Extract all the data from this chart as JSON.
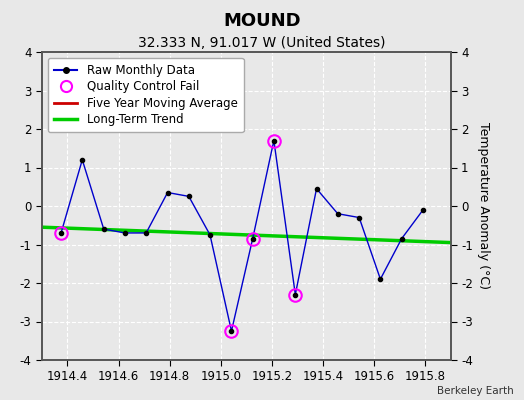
{
  "title": "MOUND",
  "subtitle": "32.333 N, 91.017 W (United States)",
  "credit": "Berkeley Earth",
  "ylabel": "Temperature Anomaly (°C)",
  "xlim": [
    1914.3,
    1915.9
  ],
  "ylim": [
    -4,
    4
  ],
  "xticks": [
    1914.4,
    1914.6,
    1914.8,
    1915.0,
    1915.2,
    1915.4,
    1915.6,
    1915.8
  ],
  "yticks": [
    -4,
    -3,
    -2,
    -1,
    0,
    1,
    2,
    3,
    4
  ],
  "background_color": "#e8e8e8",
  "raw_x": [
    1914.375,
    1914.458,
    1914.542,
    1914.625,
    1914.708,
    1914.792,
    1914.875,
    1914.958,
    1915.042,
    1915.125,
    1915.208,
    1915.292,
    1915.375,
    1915.458,
    1915.542,
    1915.625,
    1915.708,
    1915.792
  ],
  "raw_y": [
    -0.7,
    1.2,
    -0.6,
    -0.7,
    -0.7,
    0.35,
    0.25,
    -0.75,
    -3.25,
    -0.85,
    1.7,
    -2.3,
    0.45,
    -0.2,
    -0.3,
    -1.9,
    -0.85,
    -0.1
  ],
  "qc_fail_x": [
    1914.375,
    1915.042,
    1915.125,
    1915.208,
    1915.292
  ],
  "qc_fail_y": [
    -0.7,
    -3.25,
    -0.85,
    1.7,
    -2.3
  ],
  "trend_x": [
    1914.3,
    1915.9
  ],
  "trend_y": [
    -0.55,
    -0.95
  ],
  "line_color": "#0000cc",
  "dot_color": "#000000",
  "qc_color": "#ff00ff",
  "trend_color": "#00cc00",
  "ma_color": "#cc0000",
  "grid_color": "#ffffff",
  "title_fontsize": 13,
  "subtitle_fontsize": 10,
  "axis_fontsize": 9,
  "tick_fontsize": 8.5,
  "legend_fontsize": 8.5
}
